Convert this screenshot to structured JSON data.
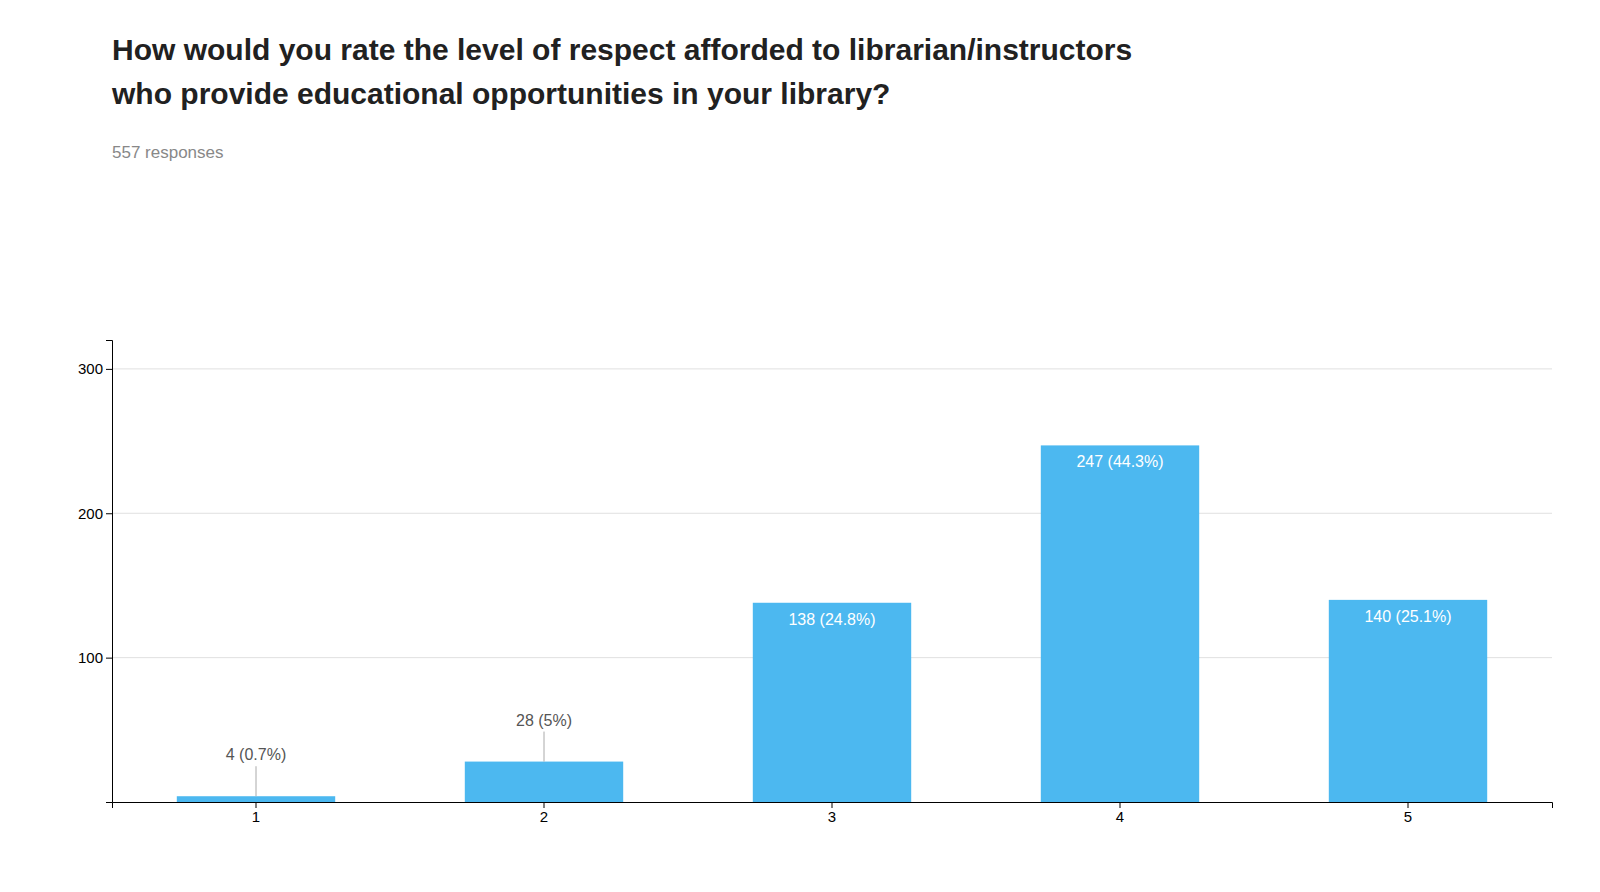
{
  "chart_data": {
    "type": "bar",
    "title": [
      "How would you rate the level of respect afforded to librarian/instructors",
      "who provide educational opportunities in your library?"
    ],
    "subtitle": "557 responses",
    "categories": [
      "1",
      "2",
      "3",
      "4",
      "5"
    ],
    "values": [
      4,
      28,
      138,
      247,
      140
    ],
    "value_labels": [
      "4 (0.7%)",
      "28 (5%)",
      "138 (24.8%)",
      "247 (44.3%)",
      "140 (25.1%)"
    ],
    "data_labels": true,
    "color": "#4cb8f0",
    "ylim": [
      0,
      320
    ],
    "yticks": [
      100,
      200,
      300
    ],
    "grid": true
  }
}
